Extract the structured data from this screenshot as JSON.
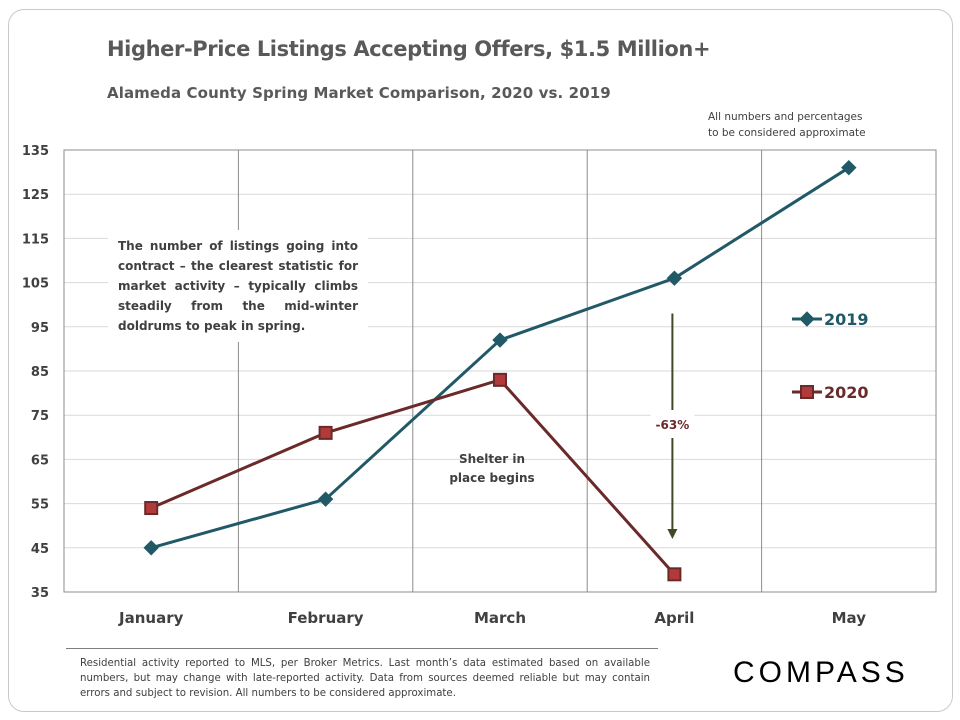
{
  "page": {
    "title": "Higher-Price Listings Accepting Offers, $1.5 Million+",
    "subtitle": "Alameda County Spring Market Comparison,  2020 vs. 2019",
    "disclaimer_lines": [
      "All numbers and percentages",
      "to be considered approximate"
    ],
    "callout": "The number of listings going into contract – the clearest statistic for market activity – typically climbs steadily from the mid-winter doldrums to peak in spring.",
    "footnote": "Residential activity reported to MLS, per Broker Metrics. Last month’s data estimated based on available numbers, but may change with late-reported activity. Data from sources deemed reliable but may contain errors and subject to revision. All numbers to be considered approximate.",
    "brand": "COMPASS"
  },
  "chart_data": {
    "type": "line",
    "title": "Higher-Price Listings Accepting Offers, $1.5 Million+",
    "subtitle": "Alameda County Spring Market Comparison,  2020 vs. 2019",
    "categories": [
      "January",
      "February",
      "March",
      "April",
      "May"
    ],
    "ylim": [
      35,
      135
    ],
    "yticks": [
      35,
      45,
      55,
      65,
      75,
      85,
      95,
      105,
      115,
      125,
      135
    ],
    "grid": "vertical category dividers",
    "legend": "right",
    "series": [
      {
        "name": "2019",
        "color": "#215967",
        "marker": "diamond",
        "values": [
          45,
          56,
          92,
          106,
          131
        ]
      },
      {
        "name": "2020",
        "color": "#6b2a2a",
        "marker": "square",
        "values": [
          54,
          71,
          83,
          39,
          null
        ]
      }
    ],
    "annotations": [
      {
        "text": "Shelter in place begins",
        "lines": [
          "Shelter in",
          "place begins"
        ],
        "category": "March"
      },
      {
        "text": "-63%",
        "category": "April",
        "arrow_from": 98,
        "arrow_to": 47
      }
    ],
    "colors": {
      "arrow": "#3e4a27",
      "label_2020": "#6b2a2a",
      "label_2019": "#215967",
      "gridline": "#d9d9d9",
      "axis_text": "#404040"
    }
  }
}
